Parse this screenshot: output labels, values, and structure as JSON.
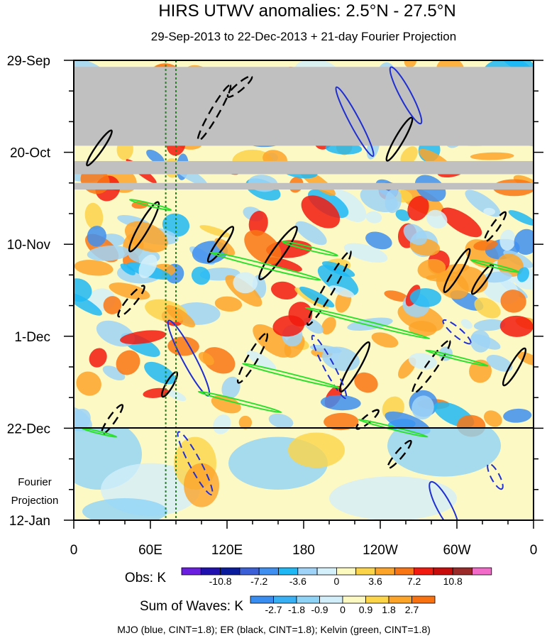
{
  "chart_data": {
    "type": "heatmap",
    "title": "HIRS UTWV anomalies: 2.5°N - 27.5°N",
    "subtitle": "29-Sep-2013 to 22-Dec-2013 + 21-day Fourier Projection",
    "xlabel": "",
    "ylabel": "",
    "x_ticks": [
      {
        "label": "0",
        "lon": 0
      },
      {
        "label": "60E",
        "lon": 60
      },
      {
        "label": "120E",
        "lon": 120
      },
      {
        "label": "180",
        "lon": 180
      },
      {
        "label": "120W",
        "lon": 240
      },
      {
        "label": "60W",
        "lon": 300
      },
      {
        "label": "0",
        "lon": 360
      }
    ],
    "xlim": [
      0,
      360
    ],
    "y_ticks": [
      {
        "label": "29-Sep",
        "day": 0
      },
      {
        "label": "20-Oct",
        "day": 21
      },
      {
        "label": "10-Nov",
        "day": 42
      },
      {
        "label": "1-Dec",
        "day": 63
      },
      {
        "label": "22-Dec",
        "day": 84
      },
      {
        "label": "12-Jan",
        "day": 105
      }
    ],
    "ylim_days": [
      0,
      105
    ],
    "projection_start_day": 84,
    "projection_label": [
      "Fourier",
      "Projection"
    ],
    "missing_data_bands_days": [
      [
        1.5,
        19.5
      ],
      [
        23,
        26
      ],
      [
        28,
        29.5
      ]
    ],
    "green_dotted_lines_lon": [
      72,
      80
    ],
    "obs_colorbar": {
      "label": "Obs: K",
      "tick_labels": [
        "-10.8",
        "-7.2",
        "-3.6",
        "0",
        "3.6",
        "7.2",
        "10.8"
      ],
      "colors": [
        "#6a1fe0",
        "#2010b0",
        "#0a1c9c",
        "#3b5fd6",
        "#3f8ff0",
        "#1fb8f5",
        "#9fd3f7",
        "#d4f0fa",
        "#fdfac0",
        "#fcd44a",
        "#fca42a",
        "#f97514",
        "#f21a0e",
        "#c80c0c",
        "#9a2a2a",
        "#f26bc8"
      ]
    },
    "waves_colorbar": {
      "label": "Sum of Waves: K",
      "tick_labels": [
        "-2.7",
        "-1.8",
        "-0.9",
        "0",
        "0.9",
        "1.8",
        "2.7"
      ],
      "colors": [
        "#3a8df0",
        "#39b0f4",
        "#8fd3f6",
        "#d2eefa",
        "#fdf9c2",
        "#fcd54a",
        "#fca42a",
        "#f97212"
      ]
    },
    "contour_legend": "MJO (blue, CINT=1.8); ER (black, CINT=1.8); Kelvin (green, CINT=1.8)",
    "contour_series": [
      {
        "name": "MJO",
        "color": "#1f2fd0",
        "cint": 1.8
      },
      {
        "name": "ER",
        "color": "#000000",
        "cint": 1.8
      },
      {
        "name": "Kelvin",
        "color": "#2ee02e",
        "cint": 1.8
      }
    ]
  }
}
